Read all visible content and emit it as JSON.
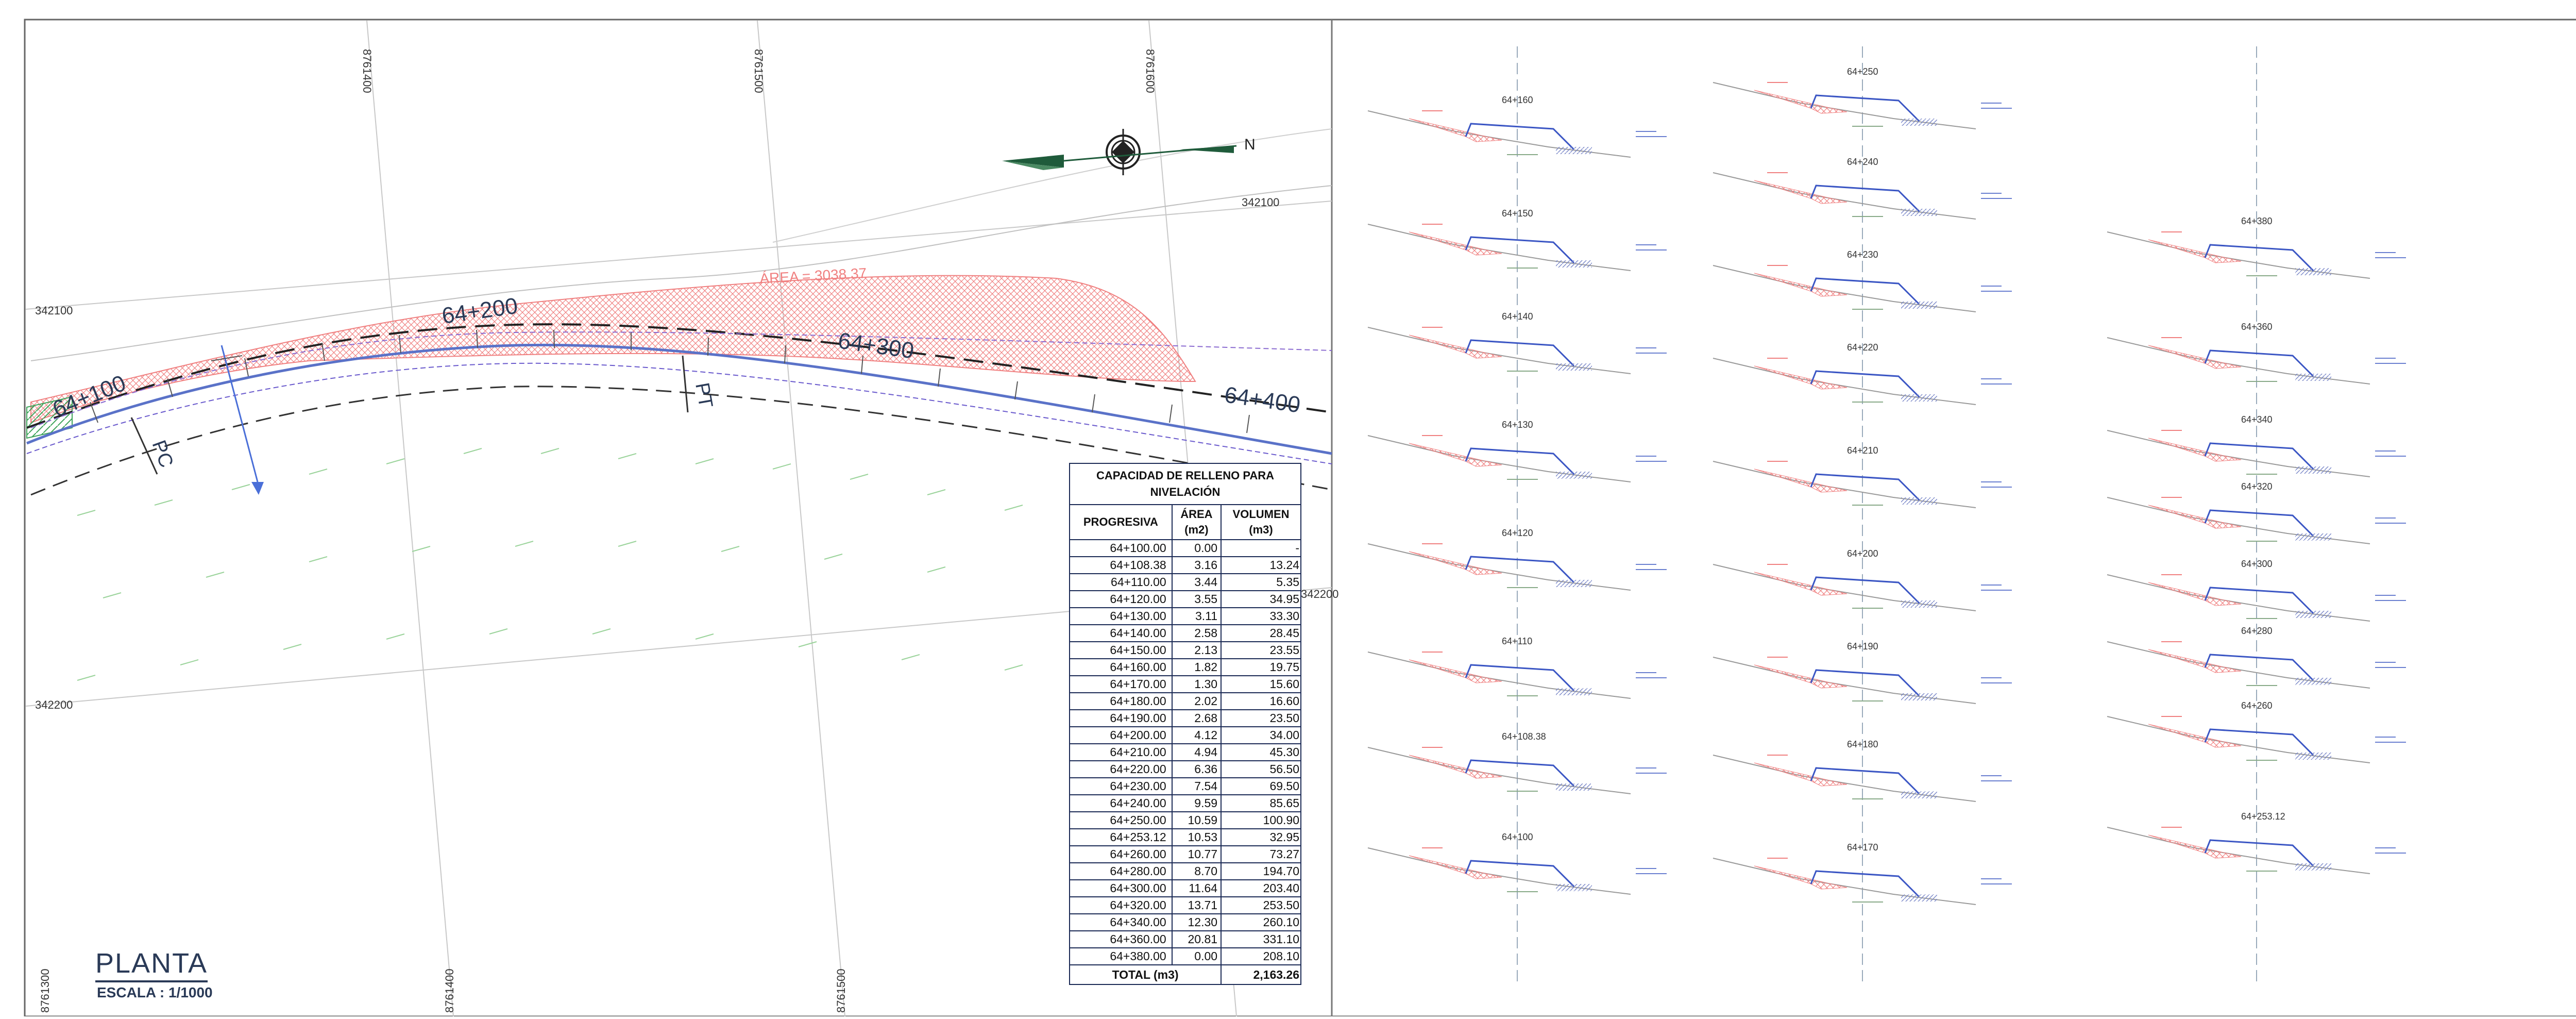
{
  "plan": {
    "title": "PLANTA",
    "scale": "ESCALA : 1/1000",
    "area_label": "ÁREA  = 3038.37",
    "stations": [
      "64+100",
      "64+200",
      "64+300",
      "64+400"
    ],
    "curve_marks": [
      "PC",
      "PT"
    ],
    "north": "N",
    "grid_easting": [
      "8761400",
      "8761500",
      "8761600",
      "8761300",
      "8761400",
      "8761500"
    ],
    "grid_northing": [
      "342100",
      "342100",
      "342200",
      "342200"
    ]
  },
  "table": {
    "title_line1": "CAPACIDAD DE RELLENO PARA",
    "title_line2": "NIVELACIÓN",
    "headers": {
      "col1": "PROGRESIVA",
      "col2_line1": "ÁREA",
      "col2_line2": "(m2)",
      "col3_line1": "VOLUMEN",
      "col3_line2": "(m3)"
    },
    "rows": [
      {
        "station": "64+100.00",
        "area": "0.00",
        "volume": "-"
      },
      {
        "station": "64+108.38",
        "area": "3.16",
        "volume": "13.24"
      },
      {
        "station": "64+110.00",
        "area": "3.44",
        "volume": "5.35"
      },
      {
        "station": "64+120.00",
        "area": "3.55",
        "volume": "34.95"
      },
      {
        "station": "64+130.00",
        "area": "3.11",
        "volume": "33.30"
      },
      {
        "station": "64+140.00",
        "area": "2.58",
        "volume": "28.45"
      },
      {
        "station": "64+150.00",
        "area": "2.13",
        "volume": "23.55"
      },
      {
        "station": "64+160.00",
        "area": "1.82",
        "volume": "19.75"
      },
      {
        "station": "64+170.00",
        "area": "1.30",
        "volume": "15.60"
      },
      {
        "station": "64+180.00",
        "area": "2.02",
        "volume": "16.60"
      },
      {
        "station": "64+190.00",
        "area": "2.68",
        "volume": "23.50"
      },
      {
        "station": "64+200.00",
        "area": "4.12",
        "volume": "34.00"
      },
      {
        "station": "64+210.00",
        "area": "4.94",
        "volume": "45.30"
      },
      {
        "station": "64+220.00",
        "area": "6.36",
        "volume": "56.50"
      },
      {
        "station": "64+230.00",
        "area": "7.54",
        "volume": "69.50"
      },
      {
        "station": "64+240.00",
        "area": "9.59",
        "volume": "85.65"
      },
      {
        "station": "64+250.00",
        "area": "10.59",
        "volume": "100.90"
      },
      {
        "station": "64+253.12",
        "area": "10.53",
        "volume": "32.95"
      },
      {
        "station": "64+260.00",
        "area": "10.77",
        "volume": "73.27"
      },
      {
        "station": "64+280.00",
        "area": "8.70",
        "volume": "194.70"
      },
      {
        "station": "64+300.00",
        "area": "11.64",
        "volume": "203.40"
      },
      {
        "station": "64+320.00",
        "area": "13.71",
        "volume": "253.50"
      },
      {
        "station": "64+340.00",
        "area": "12.30",
        "volume": "260.10"
      },
      {
        "station": "64+360.00",
        "area": "20.81",
        "volume": "331.10"
      },
      {
        "station": "64+380.00",
        "area": "0.00",
        "volume": "208.10"
      }
    ],
    "total_label": "TOTAL (m3)",
    "total_value": "2,163.26"
  },
  "sections": [
    {
      "label": "64+160"
    },
    {
      "label": "64+150"
    },
    {
      "label": "64+140"
    },
    {
      "label": "64+130"
    },
    {
      "label": "64+120"
    },
    {
      "label": "64+110"
    },
    {
      "label": "64+108.38"
    },
    {
      "label": "64+100"
    },
    {
      "label": "64+250"
    },
    {
      "label": "64+240"
    },
    {
      "label": "64+230"
    },
    {
      "label": "64+220"
    },
    {
      "label": "64+210"
    },
    {
      "label": "64+200"
    },
    {
      "label": "64+190"
    },
    {
      "label": "64+180"
    },
    {
      "label": "64+170"
    },
    {
      "label": "64+380"
    },
    {
      "label": "64+360"
    },
    {
      "label": "64+340"
    },
    {
      "label": "64+320"
    },
    {
      "label": "64+300"
    },
    {
      "label": "64+280"
    },
    {
      "label": "64+260"
    },
    {
      "label": "64+253.12"
    }
  ],
  "colors": {
    "ink": "#2a3a57",
    "alignment_blue": "#5a72c8",
    "fill_red": "#f08080",
    "terrain_green": "#9ad39a",
    "border": "#555555"
  }
}
